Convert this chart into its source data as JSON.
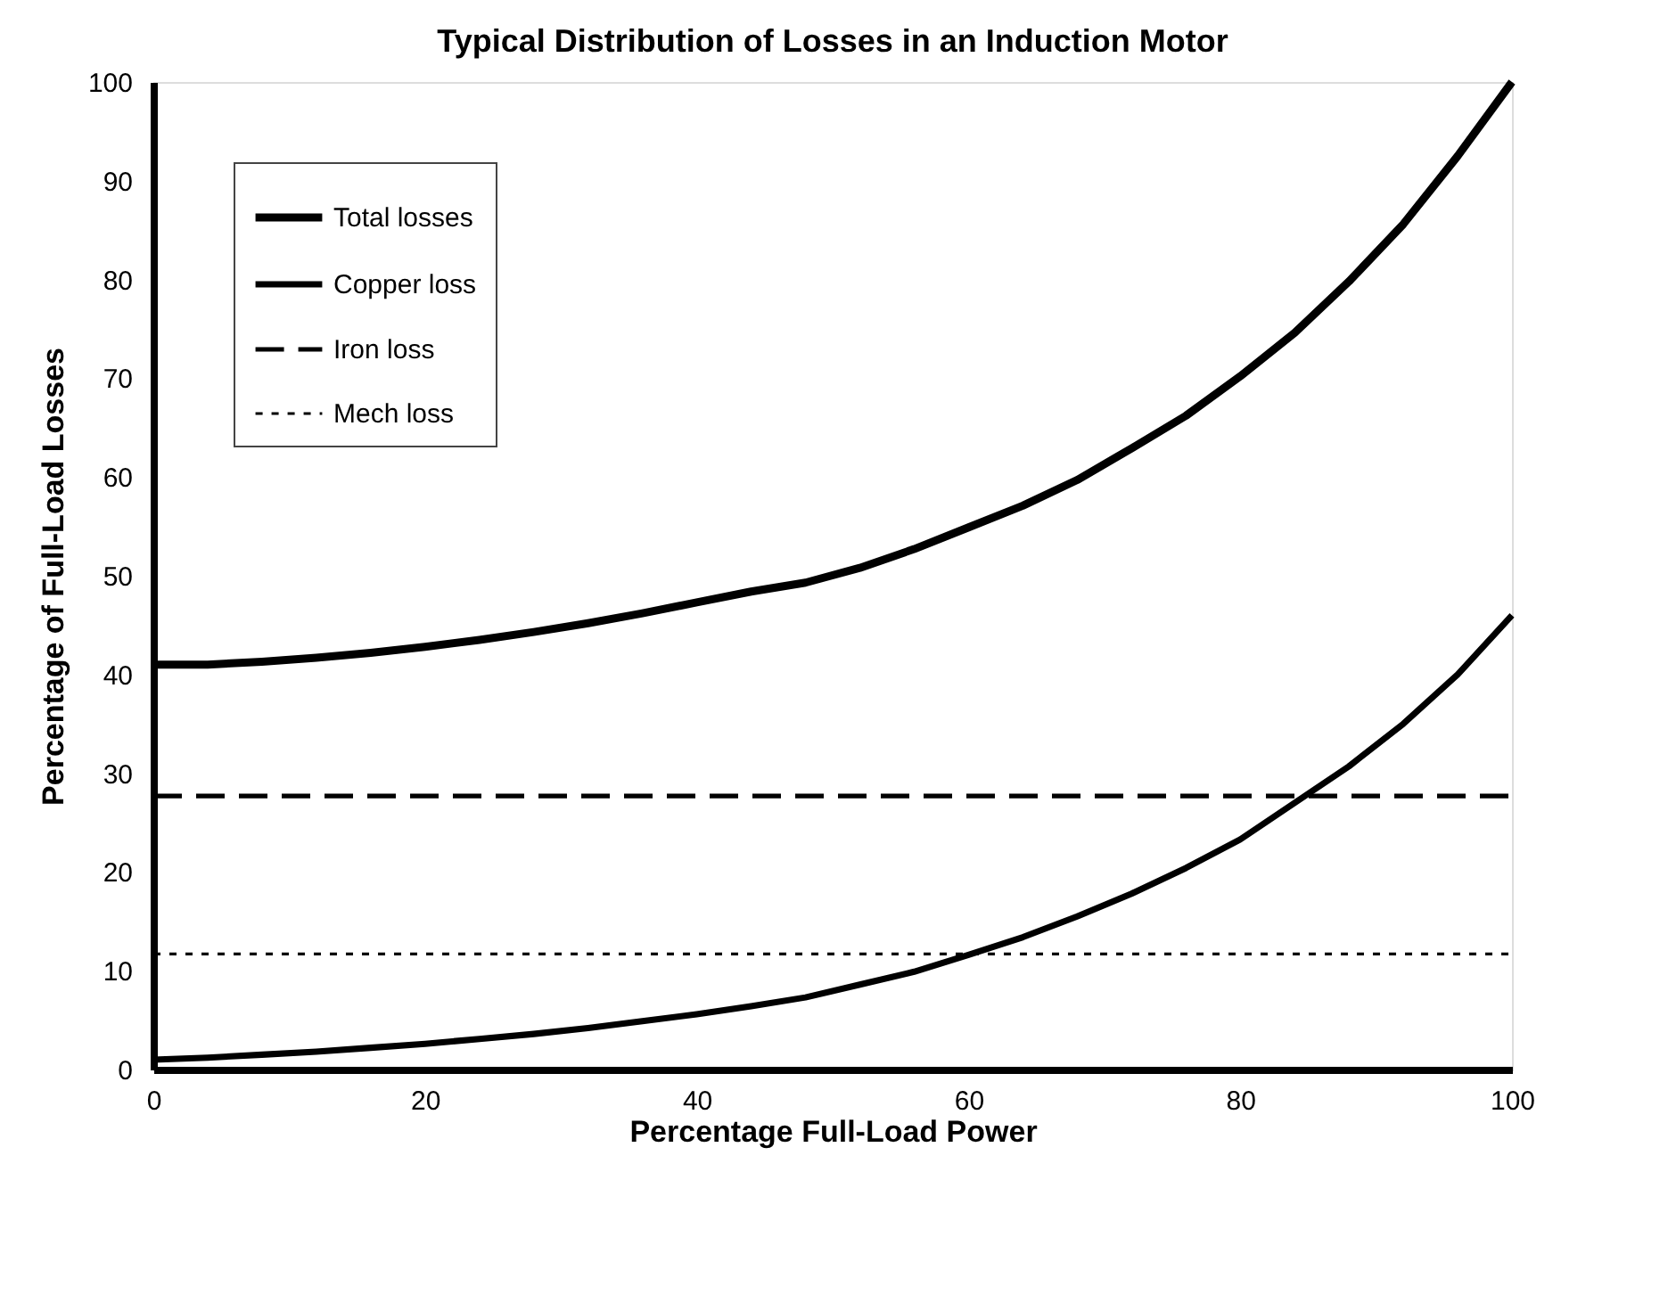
{
  "chart_data": {
    "type": "line",
    "title": "Typical Distribution of Losses in an Induction Motor",
    "xlabel": "Percentage Full-Load Power",
    "ylabel": "Percentage of Full-Load Losses",
    "xlim": [
      0,
      100
    ],
    "xticks": [
      0,
      20,
      40,
      60,
      80,
      100
    ],
    "ylim": [
      0,
      100
    ],
    "yticks": [
      0,
      10,
      20,
      30,
      40,
      50,
      60,
      70,
      80,
      90,
      100
    ],
    "grid": false,
    "legend": "top left",
    "marker": "none",
    "series": [
      {
        "name": "Total losses",
        "color": "#000000",
        "line_style": "solid",
        "x": [
          0,
          4,
          8,
          12,
          16,
          20,
          24,
          28,
          32,
          36,
          40,
          44,
          48,
          52,
          56,
          60,
          64,
          68,
          72,
          76,
          80,
          84,
          88,
          92,
          96,
          100
        ],
        "values": [
          41,
          41,
          41.3,
          41.7,
          42.2,
          42.8,
          43.5,
          44.3,
          45.2,
          46.2,
          47.3,
          48.4,
          49.3,
          50.8,
          52.7,
          54.9,
          57.1,
          59.7,
          62.9,
          66.2,
          70.2,
          74.6,
          79.8,
          85.6,
          92.5,
          100
        ]
      },
      {
        "name": "Copper loss",
        "color": "#000000",
        "line_style": "solid",
        "x": [
          0,
          4,
          8,
          12,
          16,
          20,
          24,
          28,
          32,
          36,
          40,
          44,
          48,
          52,
          56,
          60,
          64,
          68,
          72,
          76,
          80,
          84,
          88,
          92,
          96,
          100
        ],
        "values": [
          1,
          1.2,
          1.5,
          1.8,
          2.2,
          2.6,
          3.1,
          3.6,
          4.2,
          4.9,
          5.6,
          6.4,
          7.3,
          8.6,
          9.9,
          11.6,
          13.4,
          15.5,
          17.8,
          20.4,
          23.3,
          27,
          30.7,
          35,
          40,
          46
        ]
      },
      {
        "name": "Iron loss",
        "color": "#000000",
        "line_style": "dashed",
        "x": [
          0,
          100
        ],
        "values": [
          27.7,
          27.7
        ]
      },
      {
        "name": "Mech loss",
        "color": "#000000",
        "line_style": "dotted",
        "x": [
          0,
          100
        ],
        "values": [
          11.7,
          11.7
        ]
      }
    ]
  }
}
